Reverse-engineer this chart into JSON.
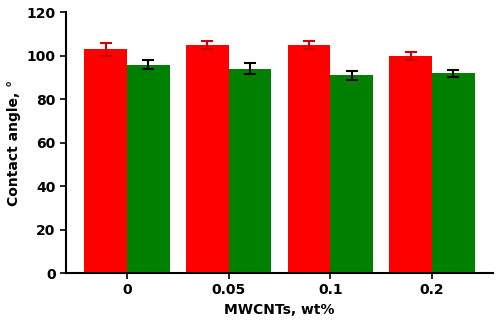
{
  "categories": [
    "0",
    "0.05",
    "0.1",
    "0.2"
  ],
  "red_values": [
    103,
    105,
    105,
    100
  ],
  "green_values": [
    96,
    94,
    91,
    92
  ],
  "red_errors": [
    3,
    2,
    2,
    2
  ],
  "green_errors": [
    2,
    2.5,
    2,
    1.5
  ],
  "bar_color_red": "#ff0000",
  "bar_color_green": "#008000",
  "error_color_red": "#cc0000",
  "error_color_green": "black",
  "xlabel": "MWCNTs, wt%",
  "ylabel": "Contact angle, °",
  "ylim": [
    0,
    120
  ],
  "yticks": [
    0,
    20,
    40,
    60,
    80,
    100,
    120
  ],
  "bar_width": 0.42,
  "figsize": [
    5.0,
    3.24
  ],
  "dpi": 100,
  "background_color": "#ffffff",
  "capsize": 4,
  "error_linewidth": 1.5,
  "xlabel_fontsize": 10,
  "ylabel_fontsize": 10,
  "tick_fontsize": 10
}
